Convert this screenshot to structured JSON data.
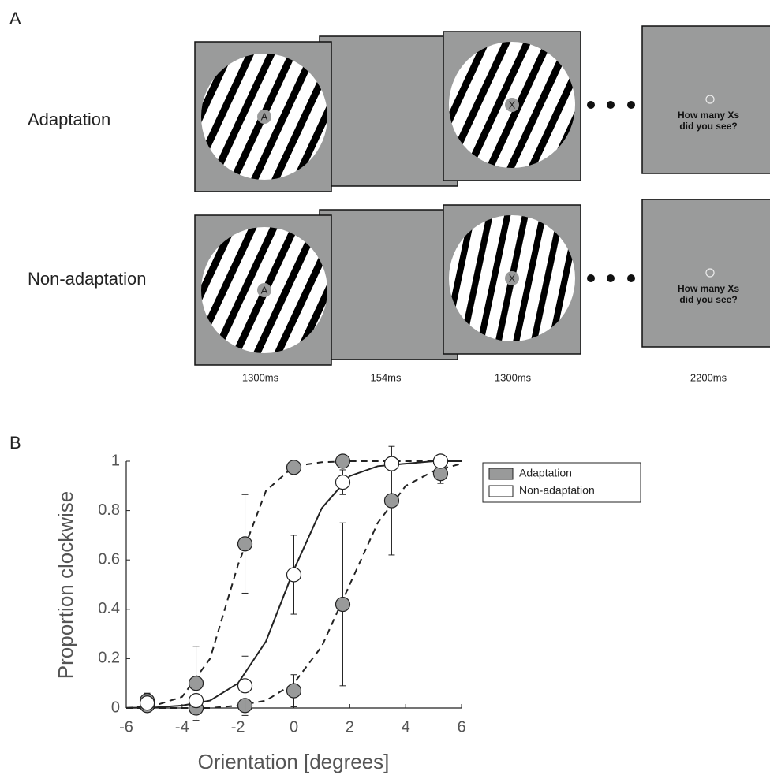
{
  "panel_a": {
    "label": "A",
    "rows": [
      {
        "label": "Adaptation",
        "adaptor_letter": "A",
        "test_letter": "X"
      },
      {
        "label": "Non-adaptation",
        "adaptor_letter": "A",
        "test_letter": "X"
      }
    ],
    "question": [
      "How many Xs",
      "did you see?"
    ],
    "durations": [
      "1300ms",
      "154ms",
      "1300ms",
      "2200ms"
    ]
  },
  "panel_b": {
    "label": "B"
  },
  "chart_data": {
    "type": "scatter",
    "xlabel": "Orientation [degrees]",
    "ylabel": "Proportion clockwise",
    "x": [
      -5.25,
      -3.5,
      -1.75,
      0,
      1.75,
      3.5,
      5.25
    ],
    "curve_x": [
      -6,
      -5,
      -4,
      -3,
      -2,
      -1,
      0,
      1,
      2,
      3,
      4,
      5,
      6
    ],
    "xlim": [
      -6,
      6
    ],
    "xticks": [
      -6,
      -4,
      -2,
      0,
      2,
      4,
      6
    ],
    "ylim": [
      0,
      1
    ],
    "yticks": [
      0,
      0.2,
      0.4,
      0.6,
      0.8,
      1
    ],
    "series": [
      {
        "name": "Adaptation",
        "color": "#999a9a",
        "dashed": true,
        "values": [
          0.03,
          0.1,
          0.665,
          0.975,
          1.0,
          0.99,
          1.0
        ],
        "errors": [
          0.03,
          0.15,
          0.2,
          null,
          null,
          null,
          null
        ],
        "curve": [
          0,
          0.009,
          0.045,
          0.2,
          0.58,
          0.88,
          0.98,
          0.996,
          1,
          1,
          1,
          1,
          1
        ]
      },
      {
        "color": "#999a9a",
        "dashed": true,
        "values": [
          0.01,
          0,
          0.01,
          0.07,
          0.42,
          0.84,
          0.95
        ],
        "errors": [
          null,
          null,
          null,
          0.065,
          0.33,
          0.22,
          0.04
        ],
        "curve": [
          0,
          0,
          0,
          0,
          0.01,
          0.03,
          0.1,
          0.25,
          0.5,
          0.75,
          0.9,
          0.96,
          0.99
        ]
      },
      {
        "name": "Non-adaptation",
        "color": "#ffffff",
        "dashed": false,
        "values": [
          0.02,
          0.03,
          0.09,
          0.54,
          0.915,
          0.99,
          1.0
        ],
        "errors": [
          null,
          null,
          0.12,
          0.16,
          0.05,
          null,
          null
        ],
        "curve": [
          0.001,
          0.002,
          0.01,
          0.03,
          0.1,
          0.27,
          0.56,
          0.81,
          0.94,
          0.98,
          0.99,
          1,
          1
        ]
      }
    ]
  }
}
